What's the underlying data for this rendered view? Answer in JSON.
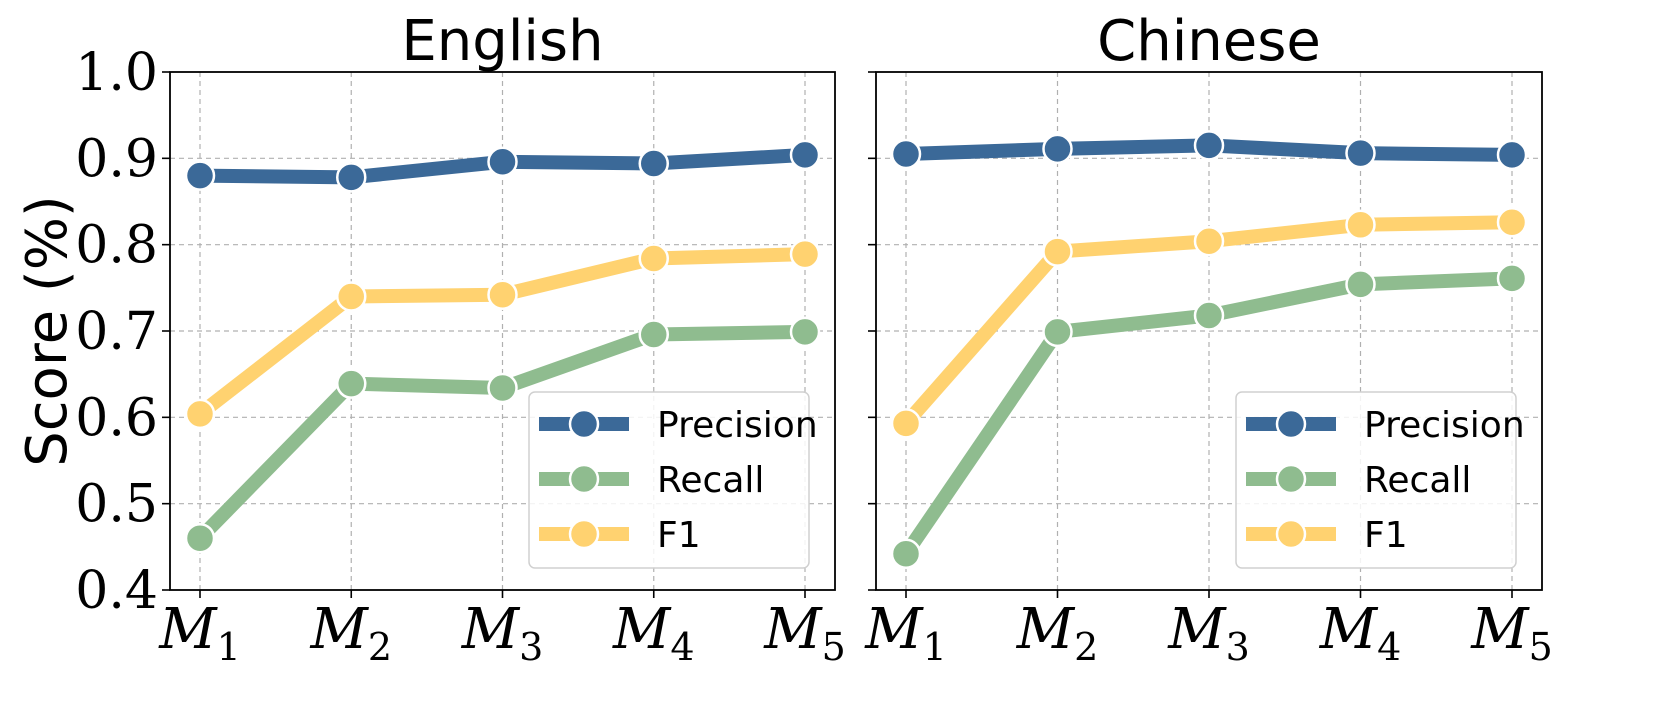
{
  "chart_data": [
    {
      "type": "line",
      "title": "English",
      "ylabel": "Score (%)",
      "ylim": [
        0.4,
        1.0
      ],
      "yticks": [
        "0.4",
        "0.5",
        "0.6",
        "0.7",
        "0.8",
        "0.9",
        "1.0"
      ],
      "categories": [
        {
          "base": "M",
          "sub": "1"
        },
        {
          "base": "M",
          "sub": "2"
        },
        {
          "base": "M",
          "sub": "3"
        },
        {
          "base": "M",
          "sub": "4"
        },
        {
          "base": "M",
          "sub": "5"
        }
      ],
      "grid": true,
      "legend_position": "lower-right",
      "series": [
        {
          "name": "Precision",
          "color": "#3b6998",
          "values": [
            0.88,
            0.878,
            0.896,
            0.894,
            0.904
          ]
        },
        {
          "name": "Recall",
          "color": "#8fbc8f",
          "values": [
            0.46,
            0.639,
            0.634,
            0.696,
            0.699
          ]
        },
        {
          "name": "F1",
          "color": "#ffd270",
          "values": [
            0.604,
            0.74,
            0.742,
            0.784,
            0.789
          ]
        }
      ]
    },
    {
      "type": "line",
      "title": "Chinese",
      "ylabel": "",
      "ylim": [
        0.4,
        1.0
      ],
      "yticks": [],
      "categories": [
        {
          "base": "M",
          "sub": "1"
        },
        {
          "base": "M",
          "sub": "2"
        },
        {
          "base": "M",
          "sub": "3"
        },
        {
          "base": "M",
          "sub": "4"
        },
        {
          "base": "M",
          "sub": "5"
        }
      ],
      "grid": true,
      "legend_position": "lower-right",
      "series": [
        {
          "name": "Precision",
          "color": "#3b6998",
          "values": [
            0.905,
            0.911,
            0.915,
            0.906,
            0.904
          ]
        },
        {
          "name": "Recall",
          "color": "#8fbc8f",
          "values": [
            0.442,
            0.699,
            0.718,
            0.754,
            0.761
          ]
        },
        {
          "name": "F1",
          "color": "#ffd270",
          "values": [
            0.593,
            0.792,
            0.804,
            0.823,
            0.826
          ]
        }
      ]
    }
  ]
}
